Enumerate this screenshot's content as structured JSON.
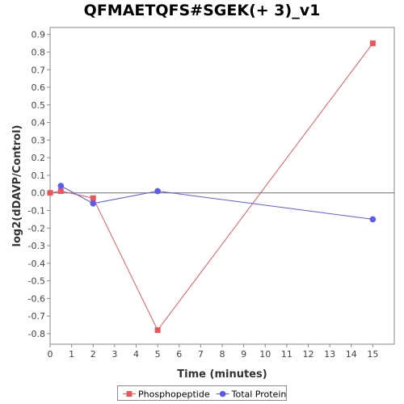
{
  "chart_data": {
    "type": "line",
    "title": "QFMAETQFS#SGEK(+ 3)_v1",
    "xlabel": "Time (minutes)",
    "ylabel": "log2(dDAVP/Control)",
    "xlim": [
      0,
      16
    ],
    "ylim": [
      -0.86,
      0.94
    ],
    "x_ticks": [
      0,
      1,
      2,
      3,
      4,
      5,
      6,
      7,
      8,
      9,
      10,
      11,
      12,
      13,
      14,
      15
    ],
    "y_ticks": [
      -0.8,
      -0.7,
      -0.6,
      -0.5,
      -0.4,
      -0.3,
      -0.2,
      -0.1,
      0.0,
      0.1,
      0.2,
      0.3,
      0.4,
      0.5,
      0.6,
      0.7,
      0.8,
      0.9
    ],
    "zero_line": true,
    "grid": false,
    "legend_position": "bottom-center",
    "series": [
      {
        "name": "Phosphopeptide",
        "color": "#e8585a",
        "marker": "square",
        "x": [
          0,
          0.5,
          2,
          5,
          15
        ],
        "y": [
          0.0,
          0.01,
          -0.03,
          -0.78,
          0.85
        ]
      },
      {
        "name": "Total Protein",
        "color": "#5b5bf0",
        "marker": "circle",
        "x": [
          0.5,
          2,
          5,
          15
        ],
        "y": [
          0.04,
          -0.06,
          0.01,
          -0.15
        ]
      }
    ]
  }
}
